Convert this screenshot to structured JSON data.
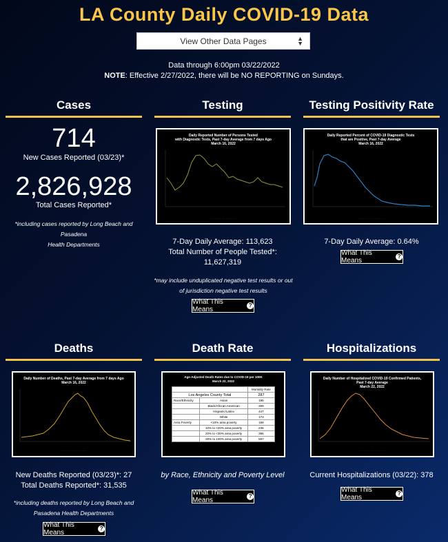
{
  "header": {
    "title": "LA County Daily COVID-19 Data",
    "select_value": "View Other Data Pages",
    "data_through": "Data through 6:00pm 03/22/2022",
    "note_label": "NOTE",
    "note_text": ": Effective 2/27/2022, there will be NO REPORTING on Sundays."
  },
  "colors": {
    "accent": "#f9c54a",
    "bar": "#f2c14e",
    "testing_line": "#8c9a3a",
    "positivity_line": "#2f7fc1",
    "deaths_line": "#c8a22a",
    "hosp_line": "#e08a3a"
  },
  "cases": {
    "heading": "Cases",
    "new_cases": "714",
    "new_cases_label": "New Cases Reported (03/23)*",
    "total_cases": "2,826,928",
    "total_cases_label": "Total Cases Reported*",
    "footnote_1": "*including cases reported by Long Beach and Pasadena",
    "footnote_2": "Health Departments"
  },
  "testing": {
    "heading": "Testing",
    "chart_title_1": "Daily Reported Number of Persons Tested",
    "chart_title_2": "with Diagnostic Tests, Past 7-day Average from 7 days Ago",
    "chart_title_3": "March 16, 2022",
    "avg": "7-Day Daily Average: 113,623",
    "total_label": "Total Number of People Tested*:",
    "total": "11,627,319",
    "footnote_1": "*may include unduplicated negative test results or out",
    "footnote_2": "of jurisdiction negative test results",
    "button": "What This Means"
  },
  "positivity": {
    "heading": "Testing Positivity Rate",
    "chart_title_1": "Daily Reported Percent of COVID-19 Diagnostic Tests",
    "chart_title_2": "that are Positive, Past 7-day Average",
    "chart_title_3": "March 16, 2022",
    "avg": "7-Day Daily Average: 0.64%",
    "button": "What This Means"
  },
  "deaths": {
    "heading": "Deaths",
    "chart_title_1": "Daily Number of Deaths, Past 7-day Average from 7 days Ago",
    "chart_title_2": "March 16, 2022",
    "new": "New Deaths Reported (03/23)*: 27",
    "total": "Total Deaths Reported*: 31,535",
    "footnote_1": "*including deaths reported by Long Beach and",
    "footnote_2": "Pasadena Health Departments",
    "button": "What This Means"
  },
  "death_rate": {
    "heading": "Death Rate",
    "chart_title_1": "Age-Adjusted Death Rates due to COVID-19 per 100K",
    "chart_title_2": "March 22, 2022",
    "col_header": "Mortality Rate",
    "total_label": "Los Angeles County Total",
    "total_value": "287",
    "rows": [
      {
        "group": "Race/Ethnicity",
        "label": "Asian",
        "value": "195"
      },
      {
        "group": "",
        "label": "Black/African American",
        "value": "309"
      },
      {
        "group": "",
        "label": "Hispanic/Latino",
        "value": "447"
      },
      {
        "group": "",
        "label": "White",
        "value": "173"
      },
      {
        "group": "Area Poverty",
        "label": "<10% area poverty",
        "value": "169"
      },
      {
        "group": "",
        "label": "10% to <20% area poverty",
        "value": "236"
      },
      {
        "group": "",
        "label": "20% to <30% area poverty",
        "value": "386"
      },
      {
        "group": "",
        "label": "30% to 100% area poverty",
        "value": "557"
      }
    ],
    "caption": "by Race, Ethnicity and Poverty Level",
    "button": "What This Means"
  },
  "hospitalizations": {
    "heading": "Hospitalizations",
    "chart_title_1": "Daily Number of Hospitalized COVID-19 Confirmed Patients,",
    "chart_title_2": "Past 7-day Average",
    "chart_title_3": "March 22, 2022",
    "current": "Current Hospitalizations (03/22): 378",
    "button": "What This Means"
  }
}
